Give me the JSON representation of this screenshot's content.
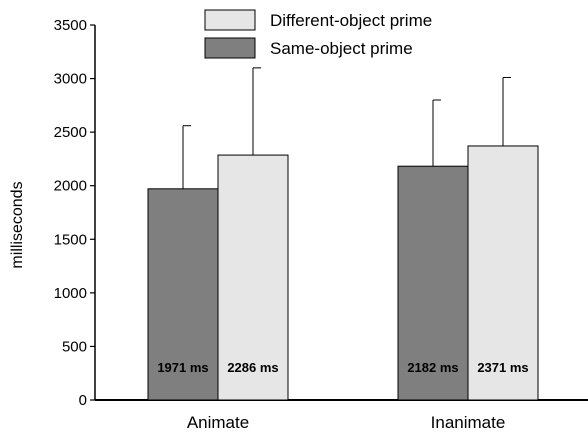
{
  "chart_data": {
    "type": "bar",
    "categories": [
      "Animate",
      "Inanimate"
    ],
    "series": [
      {
        "name": "Same-object prime",
        "values": [
          1971,
          2182
        ],
        "error_upper": [
          2560,
          2800
        ],
        "color": "#7f7f7f",
        "data_labels": [
          "1971 ms",
          "2182 ms"
        ]
      },
      {
        "name": "Different-object prime",
        "values": [
          2286,
          2371
        ],
        "error_upper": [
          3100,
          3010
        ],
        "color": "#e6e6e6",
        "data_labels": [
          "2286 ms",
          "2371 ms"
        ]
      }
    ],
    "legend_order": [
      "Different-object prime",
      "Same-object prime"
    ],
    "legend_position": "top-center",
    "xlabel": "",
    "ylabel": "milliseconds",
    "ylim": [
      0,
      3500
    ],
    "yticks": [
      "0",
      "500",
      "1000",
      "1500",
      "2000",
      "2500",
      "3000",
      "3500"
    ],
    "grid": false
  }
}
